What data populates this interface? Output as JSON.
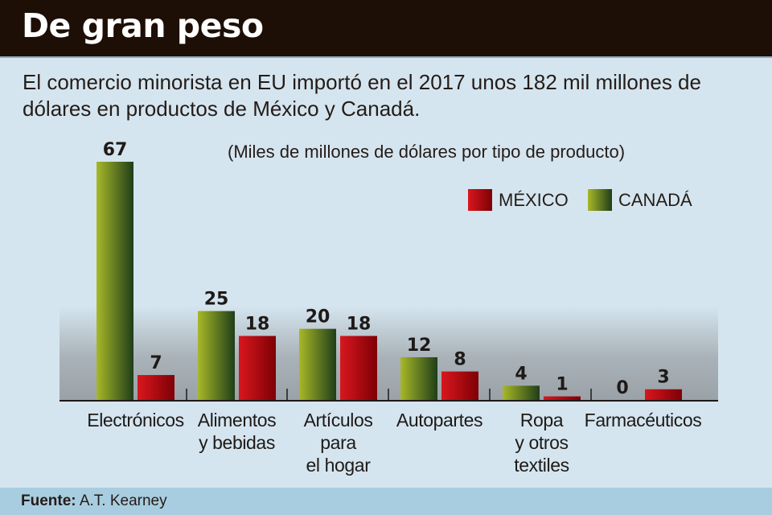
{
  "header": {
    "title": "De gran peso"
  },
  "subtitle": "El comercio minorista en EU importó en el 2017 unos 182 mil millones de dólares en productos de México y Canadá.",
  "footer": {
    "source_label": "Fuente:",
    "source_value": "A.T. Kearney"
  },
  "colors": {
    "header_bg": "#1d0e06",
    "page_bg": "#d5e5ef",
    "footer_bg": "#a9cde0",
    "mexico_light": "#d8171e",
    "mexico_dark": "#7e0005",
    "canada_light": "#a8b828",
    "canada_dark": "#1f3e19"
  },
  "chart_data": {
    "type": "bar",
    "title": "De gran peso",
    "subtitle": "(Miles de millones de dólares por tipo de producto)",
    "xlabel": "",
    "ylabel": "",
    "ylim": [
      0,
      67
    ],
    "grid": false,
    "legend_position": "top-right",
    "legend": [
      "MÉXICO",
      "CANADÁ"
    ],
    "categories": [
      "Electrónicos",
      "Alimentos\ny bebidas",
      "Artículos\npara\nel hogar",
      "Autopartes",
      "Ropa\ny otros\ntextiles",
      "Farmacéuticos"
    ],
    "series": [
      {
        "name": "CANADÁ",
        "values": [
          67,
          25,
          20,
          12,
          4,
          0
        ]
      },
      {
        "name": "MÉXICO",
        "values": [
          7,
          18,
          18,
          8,
          1,
          3
        ]
      }
    ]
  }
}
